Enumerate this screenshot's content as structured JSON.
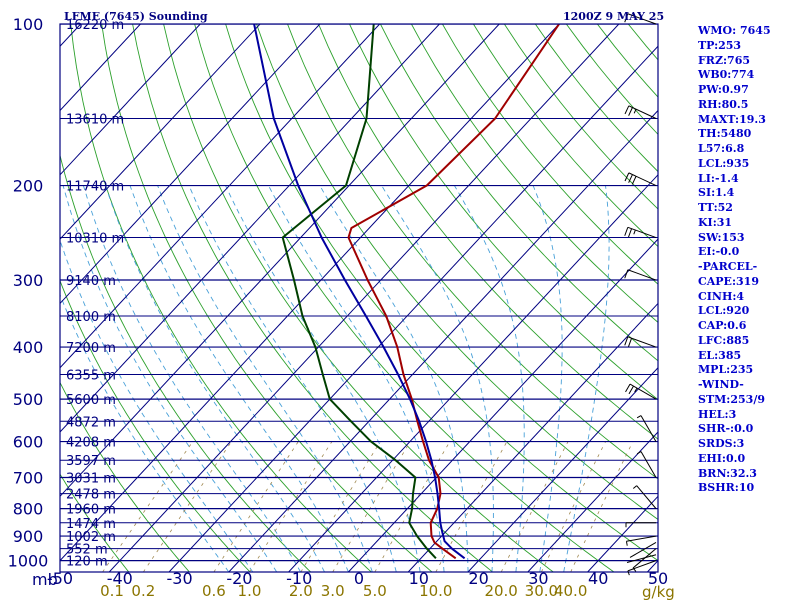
{
  "title_left": "LFME (7645) Sounding",
  "title_right": "1200Z  9 MAY 25",
  "colors": {
    "isobar": "#000080",
    "isotherm": "#000080",
    "dry_adiabat": "#2ca02c",
    "moist_adiabat": "#48a0d8",
    "mixing_ratio": "#a08850",
    "temperature": "#a00000",
    "dewpoint": "#004000",
    "parcel": "#0000a0",
    "wind_barb": "#000000",
    "index_text": "#0000cc"
  },
  "pressure_unit_label": "mb",
  "mixing_ratio_unit_label": "g/kg",
  "chart_data": {
    "type": "line",
    "chart_kind": "Skew-T log-P sounding diagram",
    "xlabel": "",
    "ylabel": "",
    "y_scale": "log (pressure, mb)",
    "ylim": [
      1050,
      100
    ],
    "xlim_at_1000mb": [
      -50,
      50
    ],
    "grid": true,
    "pressure_ticks": [
      {
        "p": 100,
        "label": "100"
      },
      {
        "p": 200,
        "label": "200"
      },
      {
        "p": 300,
        "label": "300"
      },
      {
        "p": 400,
        "label": "400"
      },
      {
        "p": 500,
        "label": "500"
      },
      {
        "p": 600,
        "label": "600"
      },
      {
        "p": 700,
        "label": "700"
      },
      {
        "p": 800,
        "label": "800"
      },
      {
        "p": 900,
        "label": "900"
      },
      {
        "p": 1000,
        "label": "1000"
      }
    ],
    "temperature_ticks": [
      {
        "t": -50,
        "label": "-50"
      },
      {
        "t": -40,
        "label": "-40"
      },
      {
        "t": -30,
        "label": "-30"
      },
      {
        "t": -20,
        "label": "-20"
      },
      {
        "t": -10,
        "label": "-10"
      },
      {
        "t": 0,
        "label": "0"
      },
      {
        "t": 10,
        "label": "10"
      },
      {
        "t": 20,
        "label": "20"
      },
      {
        "t": 30,
        "label": "30"
      },
      {
        "t": 40,
        "label": "40"
      },
      {
        "t": 50,
        "label": "50"
      }
    ],
    "mixing_ratio_ticks": [
      {
        "w": 0.1,
        "label": "0.1"
      },
      {
        "w": 0.2,
        "label": "0.2"
      },
      {
        "w": 0.6,
        "label": "0.6"
      },
      {
        "w": 1.0,
        "label": "1.0"
      },
      {
        "w": 2.0,
        "label": "2.0"
      },
      {
        "w": 3.0,
        "label": "3.0"
      },
      {
        "w": 5.0,
        "label": "5.0"
      },
      {
        "w": 10.0,
        "label": "10.0"
      },
      {
        "w": 20.0,
        "label": "20.0"
      },
      {
        "w": 30.0,
        "label": "30.0"
      },
      {
        "w": 40.0,
        "label": "40.0"
      }
    ],
    "height_levels": [
      {
        "p": 100,
        "label": "16220 m"
      },
      {
        "p": 150,
        "label": "13610 m"
      },
      {
        "p": 200,
        "label": "11740 m"
      },
      {
        "p": 250,
        "label": "10310 m"
      },
      {
        "p": 300,
        "label": "9140 m"
      },
      {
        "p": 350,
        "label": "8100 m"
      },
      {
        "p": 400,
        "label": "7200 m"
      },
      {
        "p": 450,
        "label": "6355 m"
      },
      {
        "p": 500,
        "label": "5600 m"
      },
      {
        "p": 550,
        "label": "4872 m"
      },
      {
        "p": 600,
        "label": "4208 m"
      },
      {
        "p": 650,
        "label": "3597 m"
      },
      {
        "p": 700,
        "label": "3031 m"
      },
      {
        "p": 750,
        "label": "2478 m"
      },
      {
        "p": 800,
        "label": "1960 m"
      },
      {
        "p": 850,
        "label": "1474 m"
      },
      {
        "p": 900,
        "label": "1002 m"
      },
      {
        "p": 950,
        "label": "552 m"
      },
      {
        "p": 1000,
        "label": "120 m"
      }
    ],
    "series": [
      {
        "id": "temperature",
        "points": [
          {
            "p": 990,
            "t": 15.8
          },
          {
            "p": 950,
            "t": 12.1
          },
          {
            "p": 925,
            "t": 9.8
          },
          {
            "p": 900,
            "t": 8.3
          },
          {
            "p": 850,
            "t": 6.1
          },
          {
            "p": 800,
            "t": 5.0
          },
          {
            "p": 750,
            "t": 3.2
          },
          {
            "p": 700,
            "t": 0.4
          },
          {
            "p": 650,
            "t": -3.9
          },
          {
            "p": 600,
            "t": -7.8
          },
          {
            "p": 550,
            "t": -11.9
          },
          {
            "p": 500,
            "t": -16.3
          },
          {
            "p": 450,
            "t": -21.5
          },
          {
            "p": 400,
            "t": -26.8
          },
          {
            "p": 350,
            "t": -33.5
          },
          {
            "p": 300,
            "t": -42.2
          },
          {
            "p": 250,
            "t": -52.0
          },
          {
            "p": 240,
            "t": -53.0
          },
          {
            "p": 200,
            "t": -47.0
          },
          {
            "p": 150,
            "t": -46.0
          },
          {
            "p": 100,
            "t": -50.0
          }
        ]
      },
      {
        "id": "dewpoint",
        "points": [
          {
            "p": 990,
            "t": 12.5
          },
          {
            "p": 950,
            "t": 9.5
          },
          {
            "p": 900,
            "t": 5.9
          },
          {
            "p": 850,
            "t": 2.5
          },
          {
            "p": 800,
            "t": 0.8
          },
          {
            "p": 750,
            "t": -1.4
          },
          {
            "p": 700,
            "t": -3.5
          },
          {
            "p": 650,
            "t": -9.5
          },
          {
            "p": 600,
            "t": -16.5
          },
          {
            "p": 550,
            "t": -23.0
          },
          {
            "p": 500,
            "t": -30.0
          },
          {
            "p": 450,
            "t": -35.0
          },
          {
            "p": 400,
            "t": -40.5
          },
          {
            "p": 350,
            "t": -47.5
          },
          {
            "p": 300,
            "t": -54.5
          },
          {
            "p": 250,
            "t": -63.0
          },
          {
            "p": 200,
            "t": -60.5
          },
          {
            "p": 150,
            "t": -67.5
          },
          {
            "p": 100,
            "t": -81.0
          }
        ]
      },
      {
        "id": "parcel",
        "points": [
          {
            "p": 990,
            "t": 17.3
          },
          {
            "p": 950,
            "t": 13.7
          },
          {
            "p": 920,
            "t": 11.3
          },
          {
            "p": 885,
            "t": 9.5
          },
          {
            "p": 850,
            "t": 7.7
          },
          {
            "p": 800,
            "t": 5.3
          },
          {
            "p": 750,
            "t": 2.7
          },
          {
            "p": 700,
            "t": -0.2
          },
          {
            "p": 650,
            "t": -3.5
          },
          {
            "p": 600,
            "t": -7.3
          },
          {
            "p": 550,
            "t": -11.6
          },
          {
            "p": 500,
            "t": -16.6
          },
          {
            "p": 450,
            "t": -22.4
          },
          {
            "p": 400,
            "t": -29.1
          },
          {
            "p": 350,
            "t": -36.9
          },
          {
            "p": 300,
            "t": -46.0
          },
          {
            "p": 250,
            "t": -56.5
          },
          {
            "p": 200,
            "t": -68.5
          },
          {
            "p": 150,
            "t": -83.0
          },
          {
            "p": 100,
            "t": -101.0
          }
        ]
      }
    ],
    "wind_barbs": [
      {
        "p": 1000,
        "dir": 250,
        "spd": 5
      },
      {
        "p": 975,
        "dir": 255,
        "spd": 0
      },
      {
        "p": 950,
        "dir": 230,
        "spd": 5
      },
      {
        "p": 925,
        "dir": 240,
        "spd": 0
      },
      {
        "p": 900,
        "dir": 260,
        "spd": 5
      },
      {
        "p": 850,
        "dir": 270,
        "spd": 5
      },
      {
        "p": 800,
        "dir": 320,
        "spd": 5
      },
      {
        "p": 700,
        "dir": 330,
        "spd": 5
      },
      {
        "p": 600,
        "dir": 330,
        "spd": 5
      },
      {
        "p": 500,
        "dir": 300,
        "spd": 25
      },
      {
        "p": 400,
        "dir": 290,
        "spd": 20
      },
      {
        "p": 300,
        "dir": 290,
        "spd": 10
      },
      {
        "p": 250,
        "dir": 290,
        "spd": 25
      },
      {
        "p": 200,
        "dir": 295,
        "spd": 30
      },
      {
        "p": 150,
        "dir": 295,
        "spd": 25
      },
      {
        "p": 100,
        "dir": 290,
        "spd": 10
      }
    ]
  },
  "indices": [
    "WMO: 7645",
    "TP:253",
    "FRZ:765",
    "WB0:774",
    "PW:0.97",
    "RH:80.5",
    "MAXT:19.3",
    "TH:5480",
    "L57:6.8",
    "LCL:935",
    "LI:-1.4",
    "SI:1.4",
    "TT:52",
    "KI:31",
    "SW:153",
    "EI:-0.0",
    "-PARCEL-",
    "CAPE:319",
    "CINH:4",
    "LCL:920",
    "CAP:0.6",
    "LFC:885",
    "EL:385",
    "MPL:235",
    "-WIND-",
    "STM:253/9",
    "HEL:3",
    "SHR-:0.0",
    "SRDS:3",
    "EHI:0.0",
    "BRN:32.3",
    "BSHR:10"
  ]
}
